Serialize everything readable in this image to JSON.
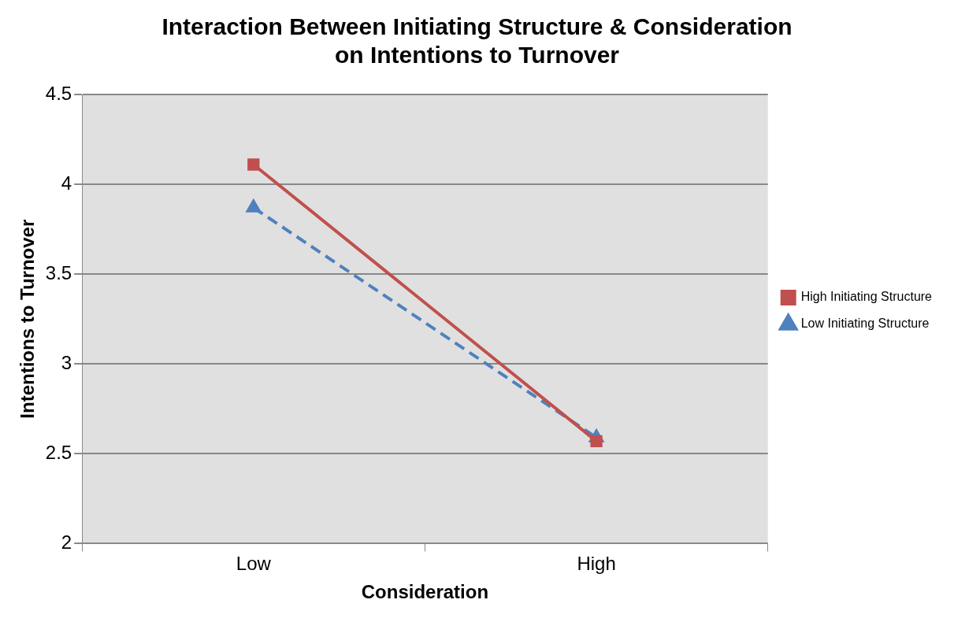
{
  "chart_data": {
    "type": "line",
    "title": [
      "Interaction Between Initiating Structure & Consideration",
      "on Intentions to Turnover"
    ],
    "xlabel": "Consideration",
    "ylabel": "Intentions to Turnover",
    "categories": [
      "Low",
      "High"
    ],
    "series": [
      {
        "name": "Low Initiating Structure",
        "color": "#4f81bd",
        "values": [
          3.87,
          2.59
        ],
        "marker": "triangle",
        "line_style": "dashed"
      },
      {
        "name": "High Initiating Structure",
        "color": "#c0504d",
        "values": [
          4.11,
          2.57
        ],
        "marker": "square",
        "line_style": "solid"
      }
    ],
    "ylim": [
      2,
      4.5
    ],
    "yticks": [
      2,
      2.5,
      3,
      3.5,
      4,
      4.5
    ],
    "grid": "y",
    "legend": "right"
  }
}
